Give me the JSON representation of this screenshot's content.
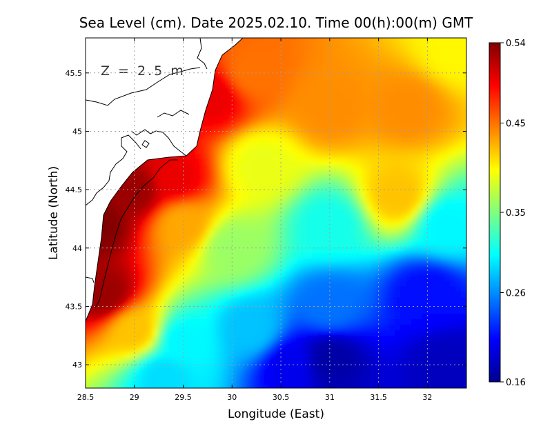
{
  "chart_data": {
    "type": "heatmap",
    "title": "Sea Level (cm). Date 2025.02.10. Time 00(h):00(m) GMT",
    "xlabel": "Longitude (East)",
    "ylabel": "Latitude (North)",
    "annotation": "Z = 2.5 m",
    "xlim": [
      28.5,
      32.4
    ],
    "ylim": [
      42.8,
      45.8
    ],
    "x_ticks": [
      28.5,
      29,
      29.5,
      30,
      30.5,
      31,
      31.5,
      32
    ],
    "x_tick_labels": [
      "28.5",
      "29",
      "29.5",
      "30",
      "30.5",
      "31",
      "31.5",
      "32"
    ],
    "y_ticks": [
      43,
      43.5,
      44,
      44.5,
      45,
      45.5
    ],
    "y_tick_labels": [
      "43",
      "43.5",
      "44",
      "44.5",
      "45",
      "45.5"
    ],
    "grid": true,
    "colorbar": {
      "min": 0.16,
      "max": 0.54,
      "ticks": [
        0.54,
        0.45,
        0.35,
        0.26,
        0.16
      ],
      "tick_labels": [
        "0.54",
        "0.45",
        "0.35",
        "0.26",
        "0.16"
      ],
      "colormap": [
        "#00008f",
        "#0000ff",
        "#00ffff",
        "#ffff00",
        "#ff0000",
        "#800000"
      ]
    },
    "field_anchors": [
      {
        "lon": 28.6,
        "lat": 44.2,
        "value": 0.54
      },
      {
        "lon": 28.7,
        "lat": 43.6,
        "value": 0.53
      },
      {
        "lon": 29.0,
        "lat": 44.5,
        "value": 0.53
      },
      {
        "lon": 29.4,
        "lat": 44.6,
        "value": 0.5
      },
      {
        "lon": 29.8,
        "lat": 45.3,
        "value": 0.5
      },
      {
        "lon": 29.5,
        "lat": 44.2,
        "value": 0.43
      },
      {
        "lon": 29.0,
        "lat": 43.3,
        "value": 0.42
      },
      {
        "lon": 30.2,
        "lat": 45.5,
        "value": 0.45
      },
      {
        "lon": 31.0,
        "lat": 45.2,
        "value": 0.44
      },
      {
        "lon": 31.8,
        "lat": 45.2,
        "value": 0.44
      },
      {
        "lon": 32.3,
        "lat": 45.7,
        "value": 0.4
      },
      {
        "lon": 30.3,
        "lat": 44.7,
        "value": 0.39
      },
      {
        "lon": 31.7,
        "lat": 44.45,
        "value": 0.42
      },
      {
        "lon": 30.0,
        "lat": 44.0,
        "value": 0.36
      },
      {
        "lon": 31.0,
        "lat": 44.2,
        "value": 0.31
      },
      {
        "lon": 32.2,
        "lat": 44.2,
        "value": 0.3
      },
      {
        "lon": 29.5,
        "lat": 43.2,
        "value": 0.3
      },
      {
        "lon": 30.2,
        "lat": 43.3,
        "value": 0.28
      },
      {
        "lon": 29.3,
        "lat": 42.9,
        "value": 0.29
      },
      {
        "lon": 31.0,
        "lat": 43.5,
        "value": 0.25
      },
      {
        "lon": 32.0,
        "lat": 43.6,
        "value": 0.21
      },
      {
        "lon": 30.6,
        "lat": 43.0,
        "value": 0.2
      },
      {
        "lon": 31.0,
        "lat": 43.05,
        "value": 0.17
      },
      {
        "lon": 32.2,
        "lat": 43.0,
        "value": 0.18
      }
    ]
  }
}
